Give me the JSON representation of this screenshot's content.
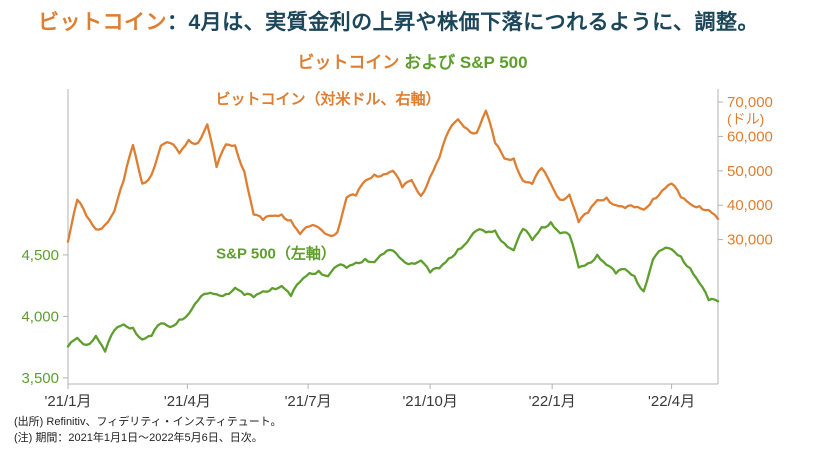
{
  "page": {
    "title": {
      "highlight": "ビットコイン",
      "rest": "：4月は、実質金利の上昇や株価下落につれるように、調整。"
    },
    "footer": {
      "source": "(出所) Refinitiv、フィデリティ・インスティテュート。",
      "note": "(注) 期間：2021年1月1日～2022年5月6日、日次。"
    }
  },
  "colors": {
    "orange": "#DE7E32",
    "green": "#5E9E2E",
    "title_dark": "#1C4659",
    "axis_line": "#B3B3B3",
    "tick_text": "#3A3A3A"
  },
  "chart_data": {
    "type": "line",
    "title_parts": [
      {
        "text": "ビットコイン",
        "color": "orange"
      },
      {
        "text": " および ",
        "color": "green"
      },
      {
        "text": "S&P 500",
        "color": "green"
      }
    ],
    "x_range": [
      "2021-01-01",
      "2022-05-06"
    ],
    "x_ticks": [
      {
        "date": "2021-01-01",
        "label": "'21/1月"
      },
      {
        "date": "2021-04-01",
        "label": "'21/4月"
      },
      {
        "date": "2021-07-01",
        "label": "'21/7月"
      },
      {
        "date": "2021-10-01",
        "label": "'21/10月"
      },
      {
        "date": "2022-01-01",
        "label": "'22/1月"
      },
      {
        "date": "2022-04-01",
        "label": "'22/4月"
      }
    ],
    "left_axis": {
      "min": 3450,
      "max": 5850,
      "ticks": [
        3500,
        4000,
        4500
      ],
      "color": "green",
      "label": "S&P 500（左軸）"
    },
    "right_axis": {
      "min": -12000,
      "max": 73800,
      "ticks": [
        30000,
        40000,
        50000,
        60000,
        70000
      ],
      "unit": "(ドル)",
      "color": "orange",
      "label": "ビットコイン（対米ドル、右軸）"
    },
    "dates": [
      "2021-01-01",
      "2021-01-08",
      "2021-01-15",
      "2021-01-22",
      "2021-01-29",
      "2021-02-05",
      "2021-02-12",
      "2021-02-19",
      "2021-02-26",
      "2021-03-05",
      "2021-03-12",
      "2021-03-19",
      "2021-03-26",
      "2021-04-02",
      "2021-04-09",
      "2021-04-16",
      "2021-04-23",
      "2021-04-30",
      "2021-05-07",
      "2021-05-14",
      "2021-05-21",
      "2021-05-28",
      "2021-06-04",
      "2021-06-11",
      "2021-06-18",
      "2021-06-25",
      "2021-07-02",
      "2021-07-09",
      "2021-07-16",
      "2021-07-23",
      "2021-07-30",
      "2021-08-06",
      "2021-08-13",
      "2021-08-20",
      "2021-08-27",
      "2021-09-03",
      "2021-09-10",
      "2021-09-17",
      "2021-09-24",
      "2021-10-01",
      "2021-10-08",
      "2021-10-15",
      "2021-10-22",
      "2021-10-29",
      "2021-11-05",
      "2021-11-12",
      "2021-11-19",
      "2021-11-26",
      "2021-12-03",
      "2021-12-10",
      "2021-12-17",
      "2021-12-24",
      "2021-12-31",
      "2022-01-07",
      "2022-01-14",
      "2022-01-21",
      "2022-01-28",
      "2022-02-04",
      "2022-02-11",
      "2022-02-18",
      "2022-02-25",
      "2022-03-04",
      "2022-03-11",
      "2022-03-18",
      "2022-03-25",
      "2022-04-01",
      "2022-04-08",
      "2022-04-15",
      "2022-04-22",
      "2022-04-29",
      "2022-05-06"
    ],
    "series": [
      {
        "id": "bitcoin",
        "name": "ビットコイン（対米ドル、右軸）",
        "axis": "right",
        "color": "orange",
        "values": [
          29400,
          41600,
          36800,
          33000,
          34300,
          38300,
          47200,
          57500,
          46300,
          48900,
          57300,
          58100,
          55100,
          59000,
          58100,
          63500,
          51100,
          57700,
          57400,
          49700,
          37300,
          35700,
          36900,
          37300,
          35600,
          31600,
          33800,
          33500,
          31400,
          32100,
          42200,
          42800,
          47100,
          48900,
          49000,
          50000,
          45200,
          47300,
          42700,
          48200,
          53900,
          61600,
          65000,
          62200,
          61000,
          67500,
          58100,
          53600,
          53600,
          47100,
          46200,
          50800,
          46200,
          41600,
          43100,
          35100,
          37800,
          41500,
          42200,
          40000,
          39200,
          39400,
          38700,
          41800,
          44300,
          46300,
          42300,
          40400,
          39700,
          38600,
          36000
        ]
      },
      {
        "id": "sp500",
        "name": "S&P 500（左軸）",
        "axis": "left",
        "color": "green",
        "values": [
          3756,
          3825,
          3768,
          3841,
          3714,
          3887,
          3935,
          3907,
          3811,
          3842,
          3943,
          3913,
          3975,
          4020,
          4129,
          4185,
          4180,
          4181,
          4233,
          4174,
          4156,
          4204,
          4230,
          4247,
          4166,
          4281,
          4352,
          4370,
          4327,
          4412,
          4395,
          4437,
          4468,
          4442,
          4509,
          4535,
          4459,
          4433,
          4455,
          4357,
          4391,
          4471,
          4545,
          4605,
          4698,
          4683,
          4698,
          4595,
          4538,
          4712,
          4621,
          4726,
          4766,
          4677,
          4663,
          4398,
          4432,
          4501,
          4419,
          4349,
          4385,
          4329,
          4204,
          4463,
          4543,
          4546,
          4488,
          4393,
          4272,
          4132,
          4123
        ]
      }
    ],
    "annotations": [
      {
        "id": "bitcoin-series-label",
        "text": "ビットコイン（対米ドル、右軸）",
        "color": "orange",
        "fx": 0.4,
        "fy": 0.05
      },
      {
        "id": "sp500-series-label",
        "text": "S&P 500（左軸）",
        "color": "green",
        "fx": 0.32,
        "fy": 0.575
      }
    ]
  }
}
